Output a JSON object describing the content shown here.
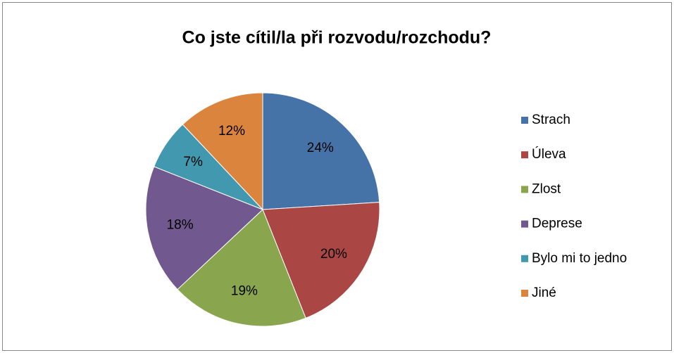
{
  "chart_data": {
    "type": "pie",
    "title": "Co jste cítil/la při rozvodu/rozchodu?",
    "categories": [
      "Strach",
      "Úleva",
      "Zlost",
      "Deprese",
      "Bylo mi to jedno",
      "Jiné"
    ],
    "values": [
      24,
      20,
      19,
      18,
      7,
      12
    ],
    "value_labels": [
      "24%",
      "20%",
      "19%",
      "18%",
      "7%",
      "12%"
    ],
    "colors": [
      "#4572a7",
      "#aa4643",
      "#89a54e",
      "#71588f",
      "#4198af",
      "#db843d"
    ],
    "legend": "right"
  }
}
